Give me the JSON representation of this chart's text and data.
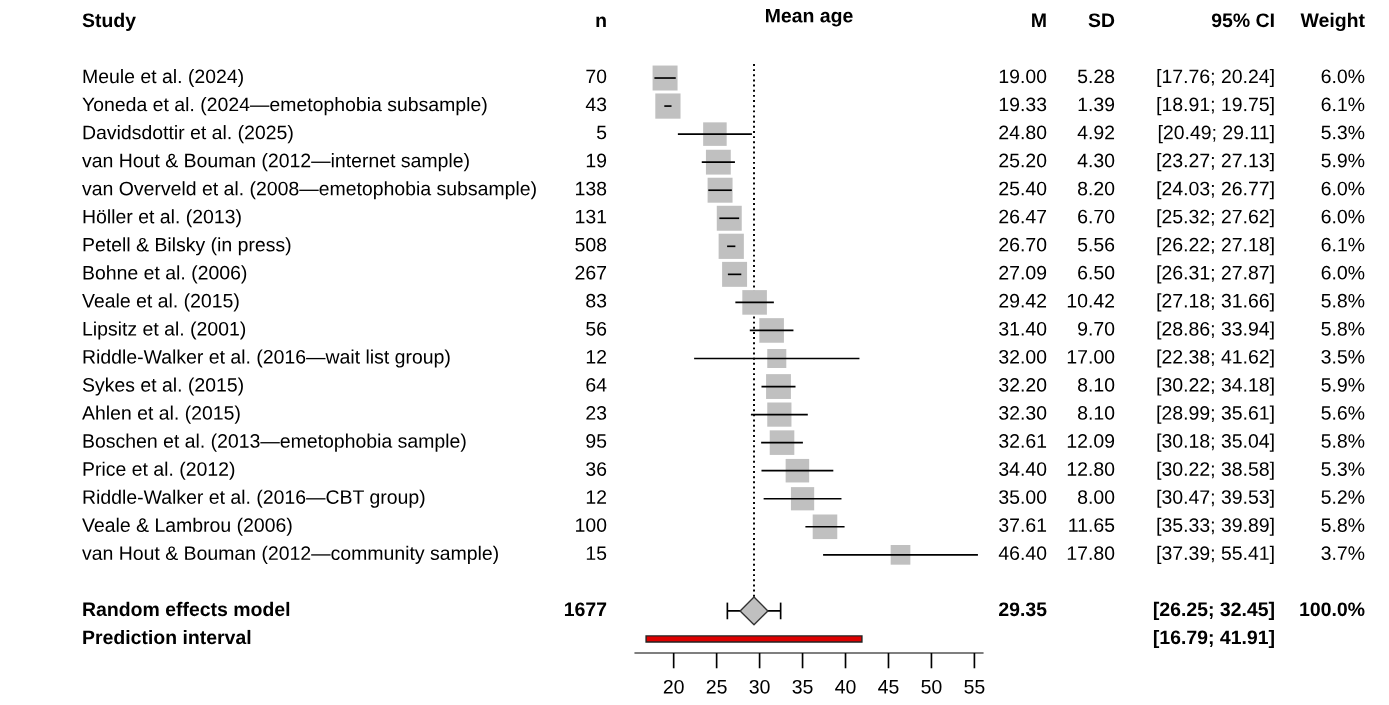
{
  "chart_data": {
    "type": "bubble",
    "orientation": "horizontal",
    "title": "Mean age",
    "ylabel": "Study",
    "categories": [
      "Meule et al. (2024)",
      "Yoneda et al. (2024—emetophobia subsample)",
      "Davidsdottir et al. (2025)",
      "van Hout & Bouman (2012—internet sample)",
      "van Overveld et al. (2008—emetophobia subsample)",
      "Höller et al. (2013)",
      "Petell & Bilsky (in press)",
      "Bohne et al. (2006)",
      "Veale et al. (2015)",
      "Lipsitz et al. (2001)",
      "Riddle-Walker et al. (2016—wait list group)",
      "Sykes et al. (2015)",
      "Ahlen et al. (2015)",
      "Boschen et al. (2013—emetophobia sample)",
      "Price et al. (2012)",
      "Riddle-Walker et al. (2016—CBT group)",
      "Veale & Lambrou (2006)",
      "van Hout & Bouman (2012—community sample)",
      null,
      "Random effects model",
      "Prediction interval"
    ],
    "series": [
      {
        "type": "bubble",
        "color": "#c0c0c0",
        "marker": "square",
        "values": [
          19.0,
          19.33,
          24.8,
          25.2,
          25.4,
          26.47,
          26.7,
          27.09,
          29.42,
          31.4,
          32.0,
          32.2,
          32.3,
          32.61,
          34.4,
          35.0,
          37.61,
          46.4,
          null,
          null,
          null
        ],
        "errors": [
          [
            17.76,
            20.24
          ],
          [
            18.91,
            19.75
          ],
          [
            20.49,
            29.11
          ],
          [
            23.27,
            27.13
          ],
          [
            24.03,
            26.77
          ],
          [
            25.32,
            27.62
          ],
          [
            26.22,
            27.18
          ],
          [
            26.31,
            27.87
          ],
          [
            27.18,
            31.66
          ],
          [
            28.86,
            33.94
          ],
          [
            22.38,
            41.62
          ],
          [
            30.22,
            34.18
          ],
          [
            28.99,
            35.61
          ],
          [
            30.18,
            35.04
          ],
          [
            30.22,
            38.58
          ],
          [
            30.47,
            39.53
          ],
          [
            35.33,
            39.89
          ],
          [
            37.39,
            55.41
          ],
          null,
          null,
          null
        ],
        "sizes": [
          0.98,
          1,
          0.87,
          0.97,
          0.98,
          0.98,
          1,
          0.98,
          0.95,
          0.95,
          0.57,
          0.97,
          0.92,
          0.95,
          0.87,
          0.85,
          0.95,
          0.61,
          null,
          null,
          null
        ]
      },
      {
        "type": "scatter",
        "marker": "diamond",
        "color": "#c0c0c0",
        "values": [
          null,
          null,
          null,
          null,
          null,
          null,
          null,
          null,
          null,
          null,
          null,
          null,
          null,
          null,
          null,
          null,
          null,
          null,
          null,
          29.35,
          null
        ],
        "errors": [
          null,
          null,
          null,
          null,
          null,
          null,
          null,
          null,
          null,
          null,
          null,
          null,
          null,
          null,
          null,
          null,
          null,
          null,
          null,
          [
            26.25,
            32.45
          ],
          null
        ]
      },
      {
        "type": "bar",
        "color": "#dd0000",
        "base": [
          null,
          null,
          null,
          null,
          null,
          null,
          null,
          null,
          null,
          null,
          null,
          null,
          null,
          null,
          null,
          null,
          null,
          null,
          null,
          null,
          16.79
        ],
        "values": [
          null,
          null,
          null,
          null,
          null,
          null,
          null,
          null,
          null,
          null,
          null,
          null,
          null,
          null,
          null,
          null,
          null,
          null,
          null,
          null,
          25.12
        ]
      }
    ],
    "ref_lines": [
      {
        "axis": "x",
        "value": 29.35,
        "line_style": "dotted"
      }
    ],
    "xlim": [
      15.5,
      56
    ],
    "xticks": [
      20,
      25,
      30,
      35,
      40,
      45,
      50,
      55
    ],
    "annotations": [
      "n",
      "M",
      "SD",
      "95% CI",
      "Weight",
      "70",
      "19.00",
      "5.28",
      "[17.76; 20.24]",
      "6.0%",
      "43",
      "19.33",
      "1.39",
      "[18.91; 19.75]",
      "6.1%",
      "5",
      "24.80",
      "4.92",
      "[20.49; 29.11]",
      "5.3%",
      "19",
      "25.20",
      "4.30",
      "[23.27; 27.13]",
      "5.9%",
      "138",
      "25.40",
      "8.20",
      "[24.03; 26.77]",
      "6.0%",
      "131",
      "26.47",
      "6.70",
      "[25.32; 27.62]",
      "6.0%",
      "508",
      "26.70",
      "5.56",
      "[26.22; 27.18]",
      "6.1%",
      "267",
      "27.09",
      "6.50",
      "[26.31; 27.87]",
      "6.0%",
      "83",
      "29.42",
      "10.42",
      "[27.18; 31.66]",
      "5.8%",
      "56",
      "31.40",
      "9.70",
      "[28.86; 33.94]",
      "5.8%",
      "12",
      "32.00",
      "17.00",
      "[22.38; 41.62]",
      "3.5%",
      "64",
      "32.20",
      "8.10",
      "[30.22; 34.18]",
      "5.9%",
      "23",
      "32.30",
      "8.10",
      "[28.99; 35.61]",
      "5.6%",
      "95",
      "32.61",
      "12.09",
      "[30.18; 35.04]",
      "5.8%",
      "36",
      "34.40",
      "12.80",
      "[30.22; 38.58]",
      "5.3%",
      "12",
      "35.00",
      "8.00",
      "[30.47; 39.53]",
      "5.2%",
      "100",
      "37.61",
      "11.65",
      "[35.33; 39.89]",
      "5.8%",
      "15",
      "46.40",
      "17.80",
      "[37.39; 55.41]",
      "3.7%",
      "1677",
      "29.35",
      "[26.25; 32.45]",
      "100.0%",
      "[16.79; 41.91]"
    ]
  }
}
